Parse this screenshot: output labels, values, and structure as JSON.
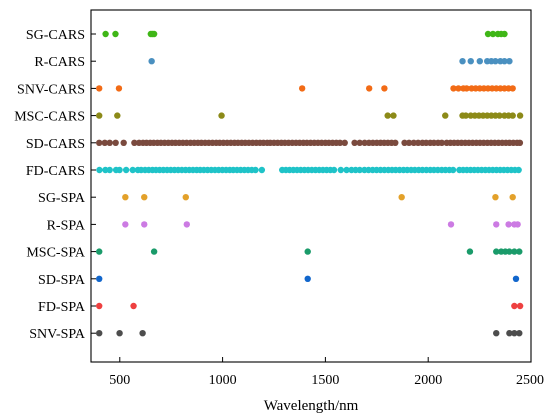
{
  "chart_data": {
    "type": "scatter",
    "xlabel": "Wavelength/nm",
    "ylabel": "",
    "xlim": [
      360,
      2500
    ],
    "x_ticks": [
      500,
      1000,
      1500,
      2000,
      2500
    ],
    "grid": false,
    "legend": "none",
    "series": [
      {
        "name": "SG-CARS",
        "color": "#3fb617",
        "values": [
          431,
          479,
          651,
          659,
          667,
          2291,
          2315,
          2339,
          2355,
          2371
        ]
      },
      {
        "name": "R-CARS",
        "color": "#4a90c0",
        "values": [
          655,
          2167,
          2207,
          2251,
          2287,
          2307,
          2327,
          2351,
          2371,
          2395
        ]
      },
      {
        "name": "SNV-CARS",
        "color": "#f26b16",
        "values": [
          400,
          496,
          1387,
          1713,
          1787,
          2123,
          2147,
          2171,
          2187,
          2211,
          2231,
          2251,
          2271,
          2291,
          2311,
          2331,
          2351,
          2371,
          2391,
          2411
        ]
      },
      {
        "name": "MSC-CARS",
        "color": "#8c8a18",
        "values": [
          400,
          488,
          995,
          1803,
          1831,
          2083,
          2167,
          2183,
          2207,
          2227,
          2247,
          2267,
          2287,
          2307,
          2327,
          2347,
          2371,
          2391,
          2411,
          2447
        ]
      },
      {
        "name": "SD-CARS",
        "color": "#7a4a3e",
        "values": [
          400,
          427,
          451,
          480,
          519,
          571,
          594,
          613,
          630,
          648,
          665,
          683,
          700,
          718,
          736,
          754,
          771,
          789,
          807,
          825,
          844,
          862,
          880,
          897,
          915,
          933,
          951,
          969,
          986,
          1004,
          1022,
          1040,
          1058,
          1075,
          1093,
          1110,
          1128,
          1146,
          1164,
          1182,
          1199,
          1217,
          1232,
          1250,
          1268,
          1286,
          1303,
          1321,
          1339,
          1357,
          1375,
          1393,
          1410,
          1428,
          1446,
          1464,
          1482,
          1500,
          1517,
          1535,
          1553,
          1571,
          1594,
          1642,
          1667,
          1691,
          1712,
          1731,
          1750,
          1768,
          1786,
          1804,
          1822,
          1840,
          1885,
          1907,
          1930,
          1951,
          1972,
          1990,
          2010,
          2028,
          2048,
          2066,
          2090,
          2108,
          2126,
          2144,
          2162,
          2180,
          2198,
          2216,
          2234,
          2252,
          2270,
          2288,
          2306,
          2324,
          2342,
          2360,
          2378,
          2396,
          2414,
          2432,
          2446
        ]
      },
      {
        "name": "FD-CARS",
        "color": "#1fc3c8",
        "values": [
          401,
          430,
          451,
          482,
          499,
          531,
          563,
          588,
          604,
          623,
          641,
          659,
          676,
          694,
          712,
          730,
          748,
          766,
          784,
          802,
          820,
          838,
          856,
          874,
          891,
          909,
          927,
          945,
          963,
          981,
          999,
          1017,
          1035,
          1052,
          1070,
          1088,
          1106,
          1124,
          1142,
          1160,
          1191,
          1290,
          1308,
          1326,
          1344,
          1362,
          1380,
          1398,
          1416,
          1434,
          1452,
          1470,
          1488,
          1506,
          1524,
          1542,
          1575,
          1603,
          1627,
          1647,
          1667,
          1690,
          1710,
          1730,
          1749,
          1768,
          1787,
          1806,
          1824,
          1842,
          1861,
          1880,
          1898,
          1917,
          1935,
          1954,
          1972,
          1991,
          2010,
          2028,
          2047,
          2066,
          2084,
          2103,
          2121,
          2152,
          2170,
          2188,
          2206,
          2224,
          2242,
          2260,
          2278,
          2296,
          2314,
          2332,
          2350,
          2368,
          2386,
          2404,
          2422,
          2440
        ]
      },
      {
        "name": "SG-SPA",
        "color": "#e3a12a",
        "values": [
          527,
          619,
          821,
          1871,
          2327,
          2411
        ]
      },
      {
        "name": "R-SPA",
        "color": "#cc7be3",
        "values": [
          527,
          619,
          826,
          2111,
          2331,
          2391,
          2419,
          2435
        ]
      },
      {
        "name": "MSC-SPA",
        "color": "#1a9b6a",
        "values": [
          400,
          667,
          1414,
          2203,
          2331,
          2355,
          2375,
          2395,
          2419,
          2443
        ]
      },
      {
        "name": "SD-SPA",
        "color": "#1166cc",
        "values": [
          400,
          1414,
          2427
        ]
      },
      {
        "name": "FD-SPA",
        "color": "#ee4040",
        "values": [
          400,
          567,
          2419,
          2447
        ]
      },
      {
        "name": "SNV-SPA",
        "color": "#4d4d4d",
        "values": [
          400,
          499,
          611,
          2331,
          2395,
          2419,
          2443
        ]
      }
    ]
  }
}
